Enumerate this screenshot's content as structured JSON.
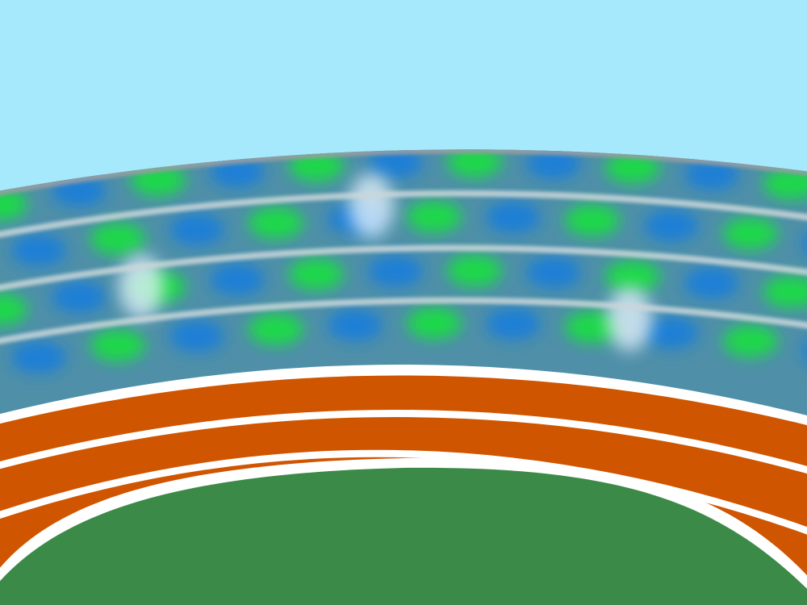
{
  "scene": {
    "type": "stadium-background",
    "colors": {
      "sky": "#a6e9fd",
      "stand_base": "#4f8fa8",
      "stand_rail": "#c9d6d9",
      "stand_top_rail": "#9a9fa2",
      "crowd_blue": "#1e7fd6",
      "crowd_green": "#1fd84a",
      "camera_flash": "#e8f4ff",
      "track": "#cf5500",
      "track_line": "#ffffff",
      "field": "#3c8a47"
    },
    "track_lanes": 3,
    "stand_rows": 4
  }
}
